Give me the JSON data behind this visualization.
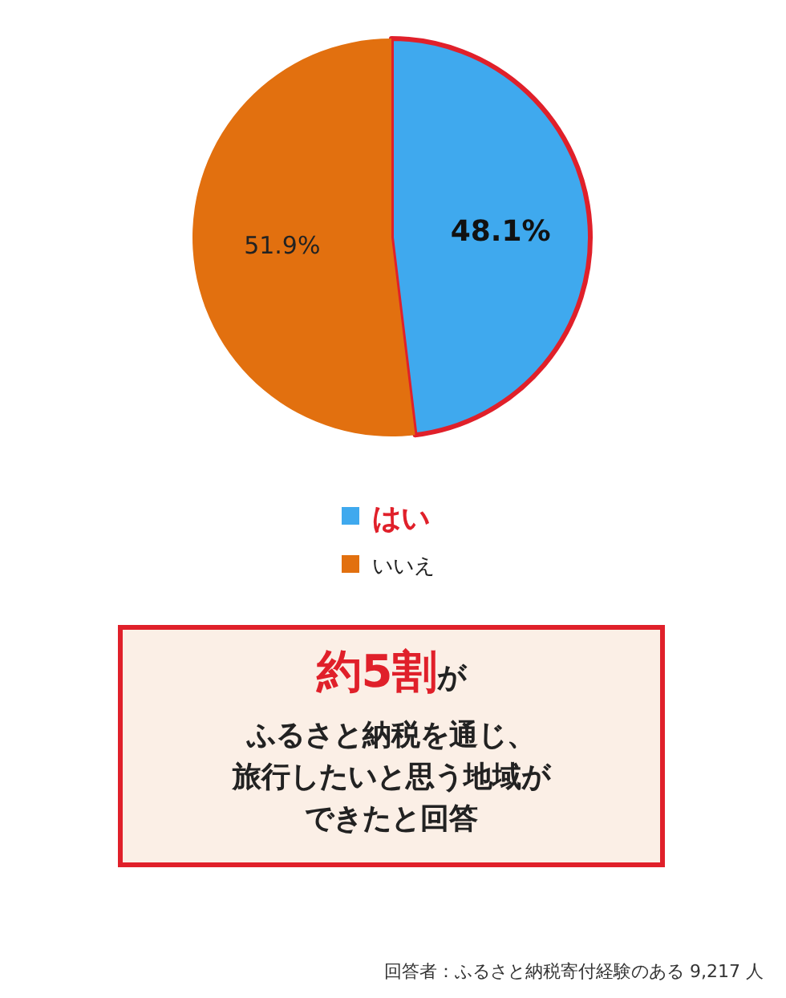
{
  "chart_data": {
    "type": "pie",
    "categories": [
      "はい",
      "いいえ"
    ],
    "values": [
      48.1,
      51.9
    ],
    "value_labels": [
      "48.1%",
      "51.9%"
    ],
    "colors": [
      "#3fa9ee",
      "#e2700f"
    ],
    "legend": "bottom",
    "annotations": [
      "**約5割**が",
      "ふるさと納税を通じ、",
      "旅行したいと思う地域が",
      "できたと回答",
      "回答者：ふるさと納税寄付経験のある 9,217 人"
    ]
  }
}
